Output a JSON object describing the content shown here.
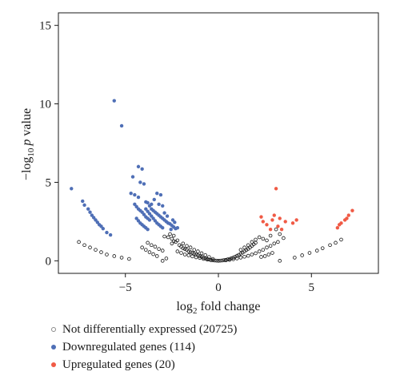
{
  "chart_data": {
    "type": "scatter",
    "title": "",
    "xlabel": "log2 fold change",
    "xlabel_main": "log",
    "xlabel_sub": "2",
    "xlabel_rest": " fold change",
    "ylabel": "−log10 p value",
    "ylabel_main": "−log",
    "ylabel_sub": "10",
    "ylabel_italic": "p",
    "ylabel_rest": " value",
    "xlim": [
      -8.6,
      8.6
    ],
    "ylim": [
      -0.8,
      15.8
    ],
    "xticks": [
      -5,
      0,
      5
    ],
    "xtick_labels": [
      "−5",
      "0",
      "5"
    ],
    "yticks": [
      0,
      5,
      10,
      15
    ],
    "ytick_labels": [
      "0",
      "5",
      "10",
      "15"
    ],
    "grid": false,
    "legend_placement": "bottom-left, below plot",
    "series": [
      {
        "name": "Not differentially expressed (20725)",
        "color": "#1a1a1a",
        "marker": "hollow",
        "points": [
          [
            -7.5,
            1.2
          ],
          [
            -7.2,
            1.0
          ],
          [
            -6.9,
            0.85
          ],
          [
            -6.6,
            0.7
          ],
          [
            -6.3,
            0.55
          ],
          [
            -6.0,
            0.4
          ],
          [
            -5.6,
            0.3
          ],
          [
            -5.2,
            0.2
          ],
          [
            -4.8,
            0.12
          ],
          [
            -4.1,
            0.85
          ],
          [
            -3.9,
            0.7
          ],
          [
            -3.7,
            0.55
          ],
          [
            -3.5,
            0.42
          ],
          [
            -3.3,
            0.3
          ],
          [
            -3.0,
            0.0
          ],
          [
            -2.8,
            0.15
          ],
          [
            -3.8,
            1.15
          ],
          [
            -3.6,
            1.0
          ],
          [
            -3.4,
            0.9
          ],
          [
            -3.2,
            0.75
          ],
          [
            -3.0,
            0.65
          ],
          [
            -2.7,
            1.5
          ],
          [
            -2.5,
            1.4
          ],
          [
            -2.4,
            1.25
          ],
          [
            -2.3,
            1.2
          ],
          [
            -2.1,
            1.0
          ],
          [
            -2.0,
            0.9
          ],
          [
            -1.9,
            0.8
          ],
          [
            -1.8,
            0.75
          ],
          [
            -1.7,
            0.7
          ],
          [
            -1.6,
            0.6
          ],
          [
            -1.5,
            0.55
          ],
          [
            -1.4,
            0.5
          ],
          [
            -1.3,
            0.45
          ],
          [
            -1.2,
            0.4
          ],
          [
            -1.1,
            0.35
          ],
          [
            -1.0,
            0.3
          ],
          [
            -0.9,
            0.25
          ],
          [
            -0.8,
            0.2
          ],
          [
            -0.7,
            0.15
          ],
          [
            -0.6,
            0.12
          ],
          [
            -0.5,
            0.08
          ],
          [
            -0.4,
            0.05
          ],
          [
            -0.3,
            0.03
          ],
          [
            -0.2,
            0.02
          ],
          [
            -0.1,
            0.01
          ],
          [
            -2.2,
            0.6
          ],
          [
            -2.0,
            0.5
          ],
          [
            -1.8,
            0.4
          ],
          [
            -1.6,
            0.35
          ],
          [
            -1.4,
            0.28
          ],
          [
            -1.2,
            0.22
          ],
          [
            -1.0,
            0.18
          ],
          [
            -0.8,
            0.12
          ],
          [
            -0.6,
            0.08
          ],
          [
            -0.4,
            0.04
          ],
          [
            -1.9,
            1.1
          ],
          [
            -1.7,
            0.95
          ],
          [
            -1.5,
            0.85
          ],
          [
            -1.3,
            0.7
          ],
          [
            -1.1,
            0.6
          ],
          [
            -0.9,
            0.48
          ],
          [
            -0.7,
            0.36
          ],
          [
            -0.5,
            0.24
          ],
          [
            -0.3,
            0.12
          ],
          [
            -2.2,
            1.3
          ],
          [
            -2.4,
            1.6
          ],
          [
            -2.6,
            1.7
          ],
          [
            -2.9,
            1.55
          ],
          [
            -2.5,
            1.1
          ],
          [
            0.0,
            0.0
          ],
          [
            0.1,
            0.01
          ],
          [
            0.2,
            0.02
          ],
          [
            0.3,
            0.04
          ],
          [
            0.4,
            0.06
          ],
          [
            0.5,
            0.09
          ],
          [
            0.6,
            0.12
          ],
          [
            0.7,
            0.16
          ],
          [
            0.8,
            0.2
          ],
          [
            0.9,
            0.26
          ],
          [
            1.0,
            0.32
          ],
          [
            1.1,
            0.38
          ],
          [
            1.2,
            0.45
          ],
          [
            1.3,
            0.52
          ],
          [
            1.4,
            0.6
          ],
          [
            1.5,
            0.68
          ],
          [
            1.6,
            0.76
          ],
          [
            1.7,
            0.85
          ],
          [
            1.8,
            0.95
          ],
          [
            1.9,
            1.05
          ],
          [
            2.0,
            1.15
          ],
          [
            0.4,
            0.03
          ],
          [
            0.6,
            0.06
          ],
          [
            0.8,
            0.1
          ],
          [
            1.0,
            0.15
          ],
          [
            1.2,
            0.2
          ],
          [
            1.4,
            0.26
          ],
          [
            1.6,
            0.32
          ],
          [
            1.8,
            0.4
          ],
          [
            2.0,
            0.48
          ],
          [
            1.2,
            0.7
          ],
          [
            1.4,
            0.85
          ],
          [
            1.6,
            1.0
          ],
          [
            1.8,
            1.2
          ],
          [
            2.0,
            1.35
          ],
          [
            2.2,
            1.5
          ],
          [
            2.4,
            1.4
          ],
          [
            2.6,
            1.3
          ],
          [
            2.2,
            0.6
          ],
          [
            2.4,
            0.7
          ],
          [
            2.6,
            0.85
          ],
          [
            2.8,
            0.95
          ],
          [
            3.0,
            1.1
          ],
          [
            3.2,
            1.2
          ],
          [
            2.3,
            0.25
          ],
          [
            2.5,
            0.3
          ],
          [
            2.7,
            0.4
          ],
          [
            2.9,
            0.5
          ],
          [
            3.3,
            0.0
          ],
          [
            4.1,
            0.2
          ],
          [
            4.5,
            0.35
          ],
          [
            4.9,
            0.5
          ],
          [
            5.3,
            0.65
          ],
          [
            5.6,
            0.8
          ],
          [
            6.0,
            1.0
          ],
          [
            6.3,
            1.15
          ],
          [
            6.6,
            1.35
          ],
          [
            3.1,
            2.0
          ],
          [
            3.3,
            1.7
          ],
          [
            2.8,
            1.6
          ],
          [
            3.5,
            1.45
          ]
        ]
      },
      {
        "name": "Downregulated genes (114)",
        "color": "#4f6fb6",
        "marker": "filled",
        "points": [
          [
            -5.6,
            10.2
          ],
          [
            -5.2,
            8.6
          ],
          [
            -4.3,
            6.0
          ],
          [
            -4.1,
            5.85
          ],
          [
            -4.6,
            5.35
          ],
          [
            -4.2,
            5.0
          ],
          [
            -4.0,
            4.9
          ],
          [
            -7.9,
            4.6
          ],
          [
            -7.3,
            3.8
          ],
          [
            -7.2,
            3.55
          ],
          [
            -7.0,
            3.3
          ],
          [
            -6.9,
            3.1
          ],
          [
            -6.8,
            2.9
          ],
          [
            -6.7,
            2.75
          ],
          [
            -6.6,
            2.6
          ],
          [
            -6.5,
            2.45
          ],
          [
            -6.4,
            2.3
          ],
          [
            -6.3,
            2.2
          ],
          [
            -6.2,
            2.05
          ],
          [
            -6.0,
            1.8
          ],
          [
            -5.8,
            1.65
          ],
          [
            -4.7,
            4.3
          ],
          [
            -4.5,
            4.2
          ],
          [
            -4.3,
            4.05
          ],
          [
            -3.9,
            3.75
          ],
          [
            -3.8,
            3.7
          ],
          [
            -3.6,
            3.6
          ],
          [
            -3.3,
            4.3
          ],
          [
            -3.1,
            4.2
          ],
          [
            -4.5,
            3.6
          ],
          [
            -4.4,
            3.45
          ],
          [
            -4.3,
            3.3
          ],
          [
            -4.2,
            3.2
          ],
          [
            -4.1,
            3.1
          ],
          [
            -4.0,
            2.95
          ],
          [
            -3.9,
            2.8
          ],
          [
            -3.8,
            2.7
          ],
          [
            -3.7,
            2.6
          ],
          [
            -3.6,
            3.3
          ],
          [
            -3.5,
            3.2
          ],
          [
            -3.4,
            3.1
          ],
          [
            -3.3,
            3.0
          ],
          [
            -3.2,
            2.9
          ],
          [
            -3.1,
            2.8
          ],
          [
            -3.0,
            2.7
          ],
          [
            -2.9,
            2.6
          ],
          [
            -2.8,
            2.5
          ],
          [
            -2.7,
            2.4
          ],
          [
            -3.9,
            3.3
          ],
          [
            -3.8,
            3.15
          ],
          [
            -3.7,
            3.0
          ],
          [
            -3.6,
            2.85
          ],
          [
            -3.5,
            2.7
          ],
          [
            -3.4,
            2.55
          ],
          [
            -3.3,
            2.4
          ],
          [
            -3.2,
            2.3
          ],
          [
            -3.1,
            2.2
          ],
          [
            -3.0,
            2.1
          ],
          [
            -4.4,
            2.7
          ],
          [
            -4.3,
            2.55
          ],
          [
            -4.2,
            2.4
          ],
          [
            -4.1,
            2.3
          ],
          [
            -4.0,
            2.2
          ],
          [
            -3.9,
            2.1
          ],
          [
            -3.8,
            2.0
          ],
          [
            -2.6,
            2.35
          ],
          [
            -2.5,
            2.25
          ],
          [
            -2.4,
            2.15
          ],
          [
            -2.3,
            2.05
          ],
          [
            -2.35,
            2.45
          ],
          [
            -2.45,
            2.6
          ],
          [
            -3.0,
            3.5
          ],
          [
            -3.2,
            3.6
          ],
          [
            -2.9,
            3.05
          ],
          [
            -2.75,
            2.85
          ],
          [
            -3.45,
            3.9
          ],
          [
            -3.7,
            3.5
          ],
          [
            -2.55,
            2.0
          ],
          [
            -2.2,
            2.1
          ]
        ]
      },
      {
        "name": "Upregulated genes (20)",
        "color": "#f05a45",
        "marker": "filled",
        "points": [
          [
            3.1,
            4.6
          ],
          [
            2.3,
            2.8
          ],
          [
            2.6,
            2.3
          ],
          [
            2.8,
            2.0
          ],
          [
            2.9,
            2.6
          ],
          [
            3.0,
            2.9
          ],
          [
            3.2,
            2.2
          ],
          [
            3.3,
            2.7
          ],
          [
            3.4,
            2.0
          ],
          [
            3.6,
            2.5
          ],
          [
            4.0,
            2.4
          ],
          [
            4.2,
            2.6
          ],
          [
            7.2,
            3.2
          ],
          [
            7.0,
            2.9
          ],
          [
            6.9,
            2.7
          ],
          [
            6.8,
            2.6
          ],
          [
            6.6,
            2.4
          ],
          [
            6.5,
            2.3
          ],
          [
            6.4,
            2.1
          ],
          [
            2.4,
            2.5
          ]
        ]
      }
    ]
  }
}
